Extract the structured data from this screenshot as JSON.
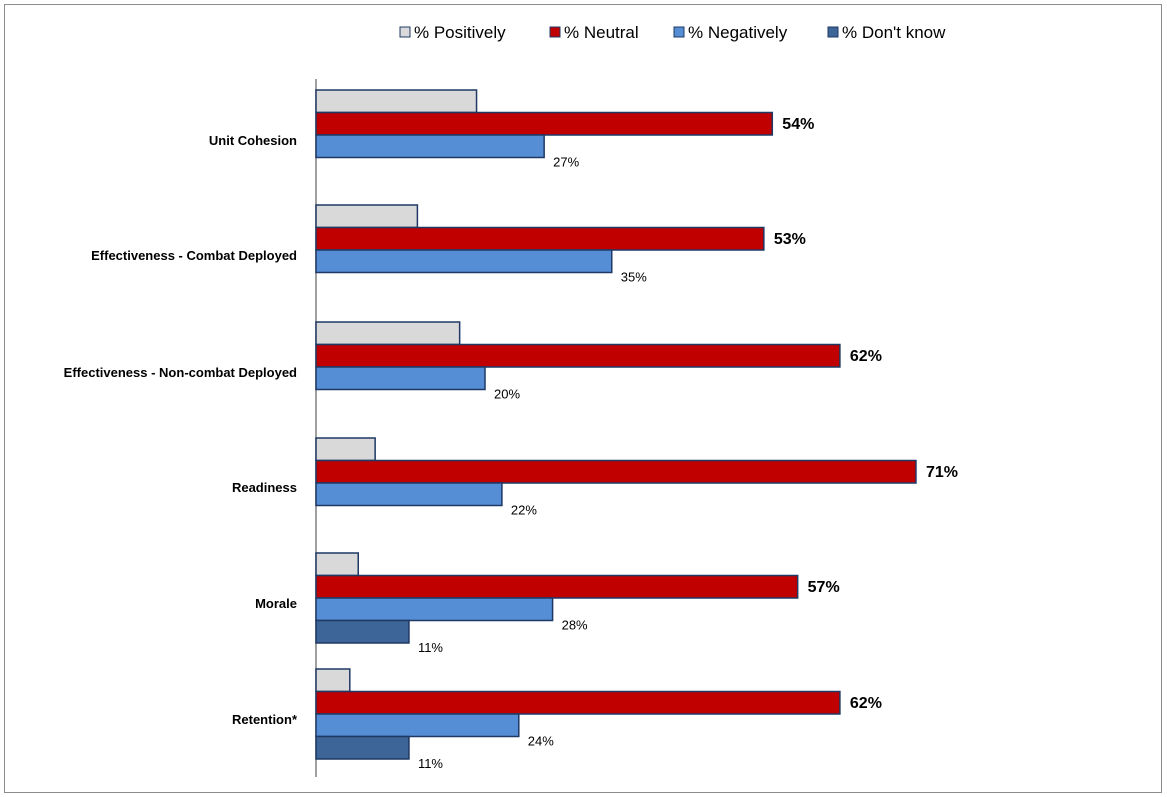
{
  "chart_data": {
    "type": "bar",
    "orientation": "horizontal",
    "categories": [
      "Unit Cohesion",
      "Effectiveness - Combat Deployed",
      "Effectiveness - Non-combat  Deployed",
      "Readiness",
      "Morale",
      "Retention*"
    ],
    "series": [
      {
        "name": "% Positively",
        "color": "#d9d9d9",
        "values": [
          19,
          12,
          17,
          7,
          5,
          4
        ],
        "labels": [
          "19%",
          "12%",
          "17%",
          "7%",
          "5%",
          "4%"
        ]
      },
      {
        "name": "% Neutral",
        "color": "#c00000",
        "values": [
          54,
          53,
          62,
          71,
          57,
          62
        ],
        "labels": [
          "54%",
          "53%",
          "62%",
          "71%",
          "57%",
          "62%"
        ]
      },
      {
        "name": "% Negatively",
        "color": "#558ed5",
        "values": [
          27,
          35,
          20,
          22,
          28,
          24
        ],
        "labels": [
          "27%",
          "35%",
          "20%",
          "22%",
          "28%",
          "24%"
        ]
      },
      {
        "name": "% Don't know",
        "color": "#3d6597",
        "values": [
          null,
          null,
          null,
          null,
          11,
          11
        ],
        "labels": [
          null,
          null,
          null,
          null,
          "11%",
          "11%"
        ]
      }
    ],
    "xlim": [
      0,
      100
    ],
    "legend_position": "top",
    "grid": false,
    "title": "",
    "xlabel": "",
    "ylabel": ""
  }
}
